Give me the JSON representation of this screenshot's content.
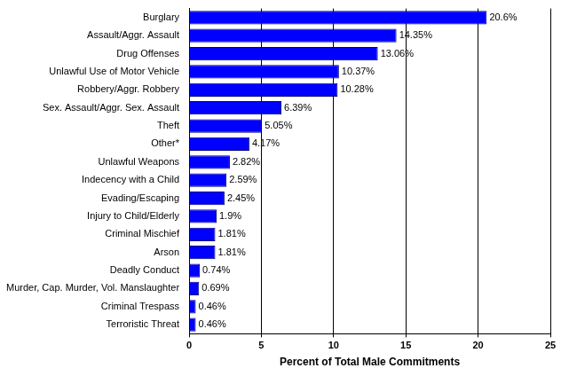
{
  "chart_data": {
    "type": "bar",
    "orientation": "horizontal",
    "categories": [
      "Burglary",
      "Assault/Aggr. Assault",
      "Drug Offenses",
      "Unlawful Use of Motor Vehicle",
      "Robbery/Aggr. Robbery",
      "Sex. Assault/Aggr. Sex. Assault",
      "Theft",
      "Other*",
      "Unlawful Weapons",
      "Indecency with a Child",
      "Evading/Escaping",
      "Injury to Child/Elderly",
      "Criminal Mischief",
      "Arson",
      "Deadly Conduct",
      "Murder, Cap. Murder, Vol. Manslaughter",
      "Criminal Trespass",
      "Terroristic Threat"
    ],
    "values": [
      20.6,
      14.35,
      13.06,
      10.37,
      10.28,
      6.39,
      5.05,
      4.17,
      2.82,
      2.59,
      2.45,
      1.9,
      1.81,
      1.81,
      0.74,
      0.69,
      0.46,
      0.46
    ],
    "value_labels": [
      "20.6%",
      "14.35%",
      "13.06%",
      "10.37%",
      "10.28%",
      "6.39%",
      "5.05%",
      "4.17%",
      "2.82%",
      "2.59%",
      "2.45%",
      "1.9%",
      "1.81%",
      "1.81%",
      "0.74%",
      "0.69%",
      "0.46%",
      "0.46%"
    ],
    "data_labels": true,
    "color": "#0000ff",
    "xlabel": "Percent of Total Male Commitments",
    "xlim": [
      0,
      25
    ],
    "xticks": [
      0,
      5,
      10,
      15,
      20,
      25
    ],
    "grid": true
  }
}
